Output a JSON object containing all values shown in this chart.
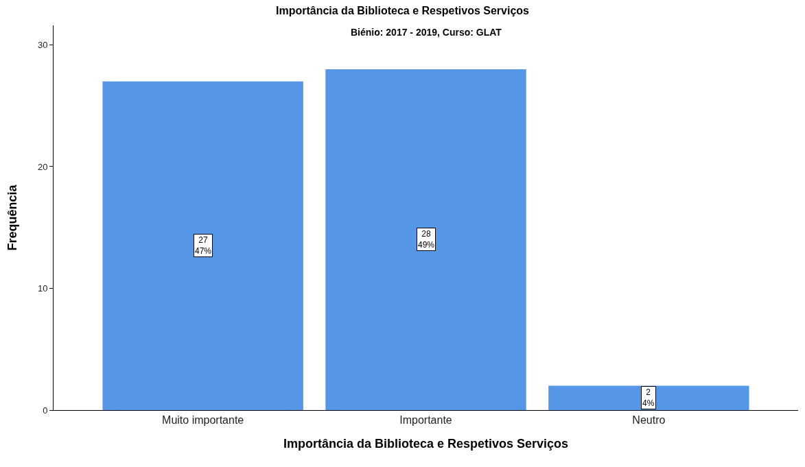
{
  "chart_data": {
    "type": "bar",
    "title": "Importância da Biblioteca e Respetivos Serviços",
    "subtitle": "Biénio: 2017 - 2019, Curso: GLAT",
    "xlabel": "Importância da Biblioteca e Respetivos Serviços",
    "ylabel": "Frequência",
    "categories": [
      "Muito importante",
      "Importante",
      "Neutro"
    ],
    "values": [
      27,
      28,
      2
    ],
    "value_labels": [
      "27\n47%",
      "28\n49%",
      "2\n4%"
    ],
    "color": "#5596e6",
    "ylim": [
      0,
      31.6
    ],
    "yticks": [
      0,
      10,
      20,
      30
    ]
  }
}
